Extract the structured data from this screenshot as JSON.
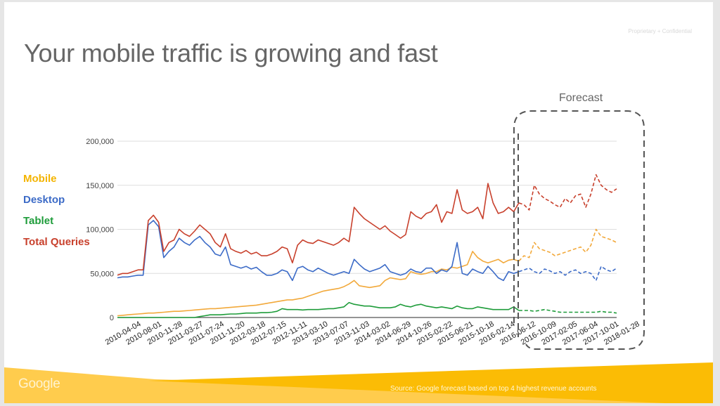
{
  "slide": {
    "confidential_label": "Proprietary + Confidential",
    "title": "Your mobile traffic is growing and fast",
    "forecast_label": "Forecast",
    "footer": {
      "logo_text": "Google",
      "source": "Source: Google forecast based on top 4 highest revenue accounts"
    },
    "colors": {
      "mobile": "#f4b400",
      "desktop": "#3c6bc7",
      "tablet": "#1e9c3a",
      "total": "#c8402c",
      "mobile_line": "#f2a93b",
      "footer_light": "#ffcc4d",
      "footer_dark": "#fbbc05"
    }
  },
  "chart_data": {
    "type": "line",
    "title": "",
    "xlabel": "",
    "ylabel": "",
    "ylim": [
      0,
      200000
    ],
    "yticks": [
      "0",
      "50,000",
      "100,000",
      "150,000",
      "200,000"
    ],
    "ytick_values": [
      0,
      50000,
      100000,
      150000,
      200000
    ],
    "grid": true,
    "legend_position": "left",
    "x_tick_labels": [
      "2010-04-04",
      "2010-08-01",
      "2010-11-28",
      "2011-03-27",
      "2011-07-24",
      "2011-11-20",
      "2012-03-18",
      "2012-07-15",
      "2012-11-11",
      "2013-03-10",
      "2013-07-07",
      "2013-11-03",
      "2014-03-02",
      "2014-06-29",
      "2014-10-26",
      "2015-02-22",
      "2015-06-21",
      "2015-10-18",
      "2016-02-14",
      "2016-06-12",
      "2016-10-09",
      "2017-02-05",
      "2017-06-04",
      "2017-10-01",
      "2018-01-28"
    ],
    "forecast_start": "2016-10-09",
    "x_start": "2010-04-04",
    "x_end": "2018-05-20",
    "sample_interval": "monthly",
    "series": [
      {
        "name": "Mobile",
        "key": "mobile",
        "values": [
          2000,
          2500,
          3000,
          3500,
          4000,
          4500,
          5000,
          5000,
          5500,
          6000,
          6500,
          7000,
          7000,
          7500,
          8000,
          8500,
          9000,
          9500,
          10000,
          10000,
          10500,
          11000,
          11500,
          12000,
          12500,
          13000,
          13500,
          14000,
          15000,
          16000,
          17000,
          18000,
          19000,
          20000,
          20000,
          21000,
          22000,
          24000,
          26000,
          28000,
          30000,
          31000,
          32000,
          33000,
          35000,
          38000,
          42000,
          36000,
          35000,
          34000,
          35000,
          36000,
          42000,
          45000,
          44000,
          43000,
          44000,
          52000,
          50000,
          49000,
          50000,
          52000,
          52000,
          55000,
          54000,
          57000,
          56000,
          58000,
          60000,
          75000,
          68000,
          64000,
          62000,
          64000,
          66000,
          62000,
          65000,
          66000,
          64000,
          70000,
          68000,
          85000,
          78000,
          76000,
          74000,
          70000,
          72000,
          74000,
          76000,
          78000,
          80000,
          74000,
          82000,
          100000,
          92000,
          90000,
          88000,
          85000
        ],
        "forecast_from_index": 78
      },
      {
        "name": "Desktop",
        "key": "desktop",
        "values": [
          45000,
          46000,
          46000,
          47000,
          48000,
          48000,
          105000,
          110000,
          103000,
          68000,
          75000,
          80000,
          90000,
          85000,
          82000,
          88000,
          92000,
          85000,
          80000,
          72000,
          70000,
          80000,
          60000,
          58000,
          56000,
          58000,
          55000,
          57000,
          52000,
          48000,
          48000,
          50000,
          54000,
          52000,
          42000,
          56000,
          58000,
          54000,
          52000,
          56000,
          53000,
          50000,
          48000,
          50000,
          52000,
          50000,
          66000,
          60000,
          55000,
          52000,
          54000,
          56000,
          60000,
          52000,
          50000,
          48000,
          50000,
          55000,
          52000,
          51000,
          56000,
          56000,
          50000,
          54000,
          52000,
          58000,
          85000,
          50000,
          48000,
          55000,
          52000,
          50000,
          58000,
          52000,
          45000,
          42000,
          52000,
          50000,
          52000,
          54000,
          56000,
          52000,
          50000,
          55000,
          53000,
          50000,
          52000,
          48000,
          52000,
          54000,
          50000,
          52000,
          50000,
          42000,
          58000,
          54000,
          52000,
          56000
        ],
        "forecast_from_index": 78
      },
      {
        "name": "Tablet",
        "key": "tablet",
        "values": [
          0,
          0,
          0,
          0,
          0,
          0,
          0,
          0,
          0,
          0,
          0,
          0,
          0,
          0,
          0,
          0,
          1000,
          2000,
          3000,
          3000,
          3000,
          3500,
          4000,
          4000,
          4500,
          5000,
          5000,
          5000,
          5500,
          5500,
          6000,
          7000,
          10000,
          9000,
          9000,
          9000,
          8500,
          9000,
          9000,
          9000,
          9500,
          10000,
          10000,
          11000,
          12000,
          17000,
          15000,
          14000,
          13000,
          13000,
          12000,
          11000,
          11000,
          11000,
          12000,
          15000,
          13000,
          12000,
          14000,
          15000,
          13000,
          12000,
          11000,
          12000,
          11000,
          10000,
          13000,
          11000,
          10000,
          10000,
          12000,
          11000,
          10000,
          9000,
          9000,
          9000,
          9000,
          12000,
          8000,
          8000,
          8000,
          7000,
          8000,
          9000,
          8000,
          7000,
          6000,
          6000,
          6000,
          6000,
          6000,
          6000,
          6000,
          6000,
          7000,
          6000,
          6000,
          5000
        ],
        "forecast_from_index": 78
      },
      {
        "name": "Total Queries",
        "key": "total",
        "values": [
          48000,
          50000,
          50000,
          52000,
          54000,
          54000,
          110000,
          116000,
          108000,
          75000,
          85000,
          88000,
          100000,
          95000,
          92000,
          98000,
          105000,
          100000,
          95000,
          85000,
          80000,
          95000,
          78000,
          75000,
          73000,
          76000,
          72000,
          74000,
          70000,
          70000,
          72000,
          75000,
          80000,
          78000,
          62000,
          82000,
          88000,
          85000,
          84000,
          88000,
          86000,
          84000,
          82000,
          85000,
          90000,
          86000,
          125000,
          118000,
          112000,
          108000,
          104000,
          100000,
          104000,
          98000,
          94000,
          90000,
          94000,
          120000,
          115000,
          112000,
          118000,
          120000,
          128000,
          108000,
          120000,
          118000,
          145000,
          122000,
          118000,
          120000,
          125000,
          112000,
          152000,
          130000,
          118000,
          120000,
          125000,
          120000,
          130000,
          128000,
          122000,
          150000,
          140000,
          135000,
          132000,
          128000,
          125000,
          135000,
          130000,
          138000,
          140000,
          125000,
          140000,
          162000,
          150000,
          145000,
          142000,
          146000
        ],
        "forecast_from_index": 78
      }
    ]
  }
}
